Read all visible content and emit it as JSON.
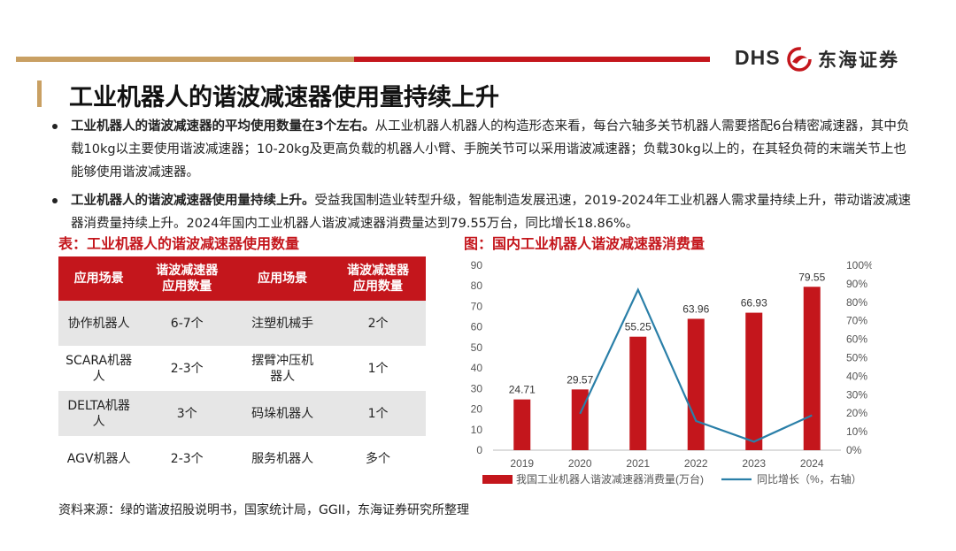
{
  "header": {
    "brand_latin": "DHS",
    "brand_cn": "东海证券",
    "colors": {
      "gold": "#c9a063",
      "red": "#c4161c"
    }
  },
  "page": {
    "title": "工业机器人的谐波减速器使用量持续上升"
  },
  "bullets": [
    {
      "bold": "工业机器人的谐波减速器的平均使用数量在3个左右。",
      "text": "从工业机器人机器人的构造形态来看，每台六轴多关节机器人需要搭配6台精密减速器，其中负载10kg以主要使用谐波减速器；10-20kg及更高负载的机器人小臂、手腕关节可以采用谐波减速器；负载30kg以上的，在其轻负荷的末端关节上也能够使用谐波减速器。"
    },
    {
      "bold": "工业机器人的谐波减速器使用量持续上升。",
      "text": "受益我国制造业转型升级，智能制造发展迅速，2019-2024年工业机器人需求量持续上升，带动谐波减速器消费量持续上升。2024年国内工业机器人谐波减速器消费量达到79.55万台，同比增长18.86%。"
    }
  ],
  "table": {
    "title": "表：工业机器人的谐波减速器使用数量",
    "headers": [
      "应用场景",
      "谐波减速器\n应用数量",
      "应用场景",
      "谐波减速器\n应用数量"
    ],
    "rows": [
      [
        "协作机器人",
        "6-7个",
        "注塑机械手",
        "2个"
      ],
      [
        "SCARA机器人",
        "2-3个",
        "摆臂冲压机器人",
        "1个"
      ],
      [
        "DELTA机器人",
        "3个",
        "码垛机器人",
        "1个"
      ],
      [
        "AGV机器人",
        "2-3个",
        "服务机器人",
        "多个"
      ]
    ]
  },
  "source": "资料来源：绿的谐波招股说明书，国家统计局，GGII，东海证券研究所整理",
  "chart_title": "图：国内工业机器人谐波减速器消费量",
  "chart_data": {
    "type": "bar",
    "categories": [
      "2019",
      "2020",
      "2021",
      "2022",
      "2023",
      "2024"
    ],
    "series": [
      {
        "name": "我国工业机器人谐波减速器消费量(万台)",
        "type": "bar",
        "axis": "left",
        "values": [
          24.71,
          29.57,
          55.25,
          63.96,
          66.93,
          79.55
        ],
        "color": "#c4161c"
      },
      {
        "name": "同比增长（%，右轴）",
        "type": "line",
        "axis": "right",
        "values": [
          null,
          19.7,
          86.8,
          15.8,
          4.6,
          18.86
        ],
        "color": "#2a7fa8"
      }
    ],
    "data_labels": [
      "24.71",
      "29.57",
      "55.25",
      "63.96",
      "66.93",
      "79.55"
    ],
    "ylim": [
      0,
      90
    ],
    "yticks": [
      "0",
      "10",
      "20",
      "30",
      "40",
      "50",
      "60",
      "70",
      "80",
      "90"
    ],
    "y2lim": [
      0,
      100
    ],
    "y2ticks": [
      "0%",
      "10%",
      "20%",
      "30%",
      "40%",
      "50%",
      "60%",
      "70%",
      "80%",
      "90%",
      "100%"
    ],
    "legend": [
      "我国工业机器人谐波减速器消费量(万台)",
      "同比增长（%，右轴）"
    ],
    "legend_position": "bottom"
  }
}
